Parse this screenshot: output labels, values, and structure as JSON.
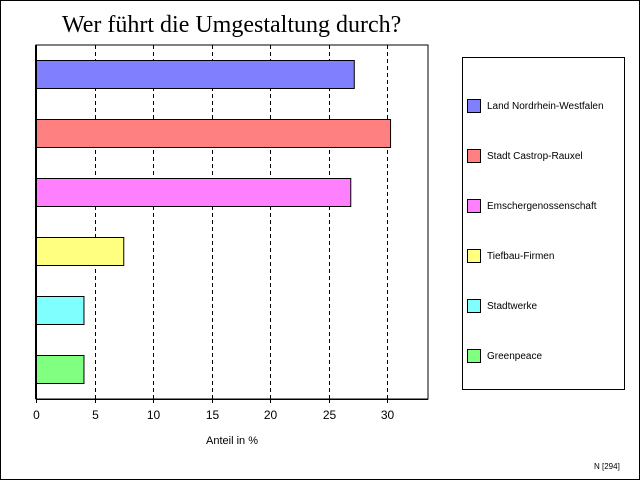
{
  "chart_data": {
    "type": "bar",
    "orientation": "horizontal",
    "title": "Wer führt die Umgestaltung durch?",
    "xlabel": "Anteil in %",
    "ylabel": "",
    "xlim": [
      0,
      33.5
    ],
    "xticks": [
      0,
      5,
      10,
      15,
      20,
      25,
      30
    ],
    "grid": "vertical dashed",
    "legend_position": "right",
    "categories": [
      "Land Nordrhein-Westfalen",
      "Stadt Castrop-Rauxel",
      "Emschergenossenschaft",
      "Tiefbau-Firmen",
      "Stadtwerke",
      "Greenpeace"
    ],
    "values": [
      27.2,
      30.3,
      26.9,
      7.5,
      4.1,
      4.1
    ],
    "colors": [
      "#8080ff",
      "#ff8080",
      "#ff80ff",
      "#ffff80",
      "#80ffff",
      "#80ff80"
    ]
  },
  "footnote": "N [294]"
}
